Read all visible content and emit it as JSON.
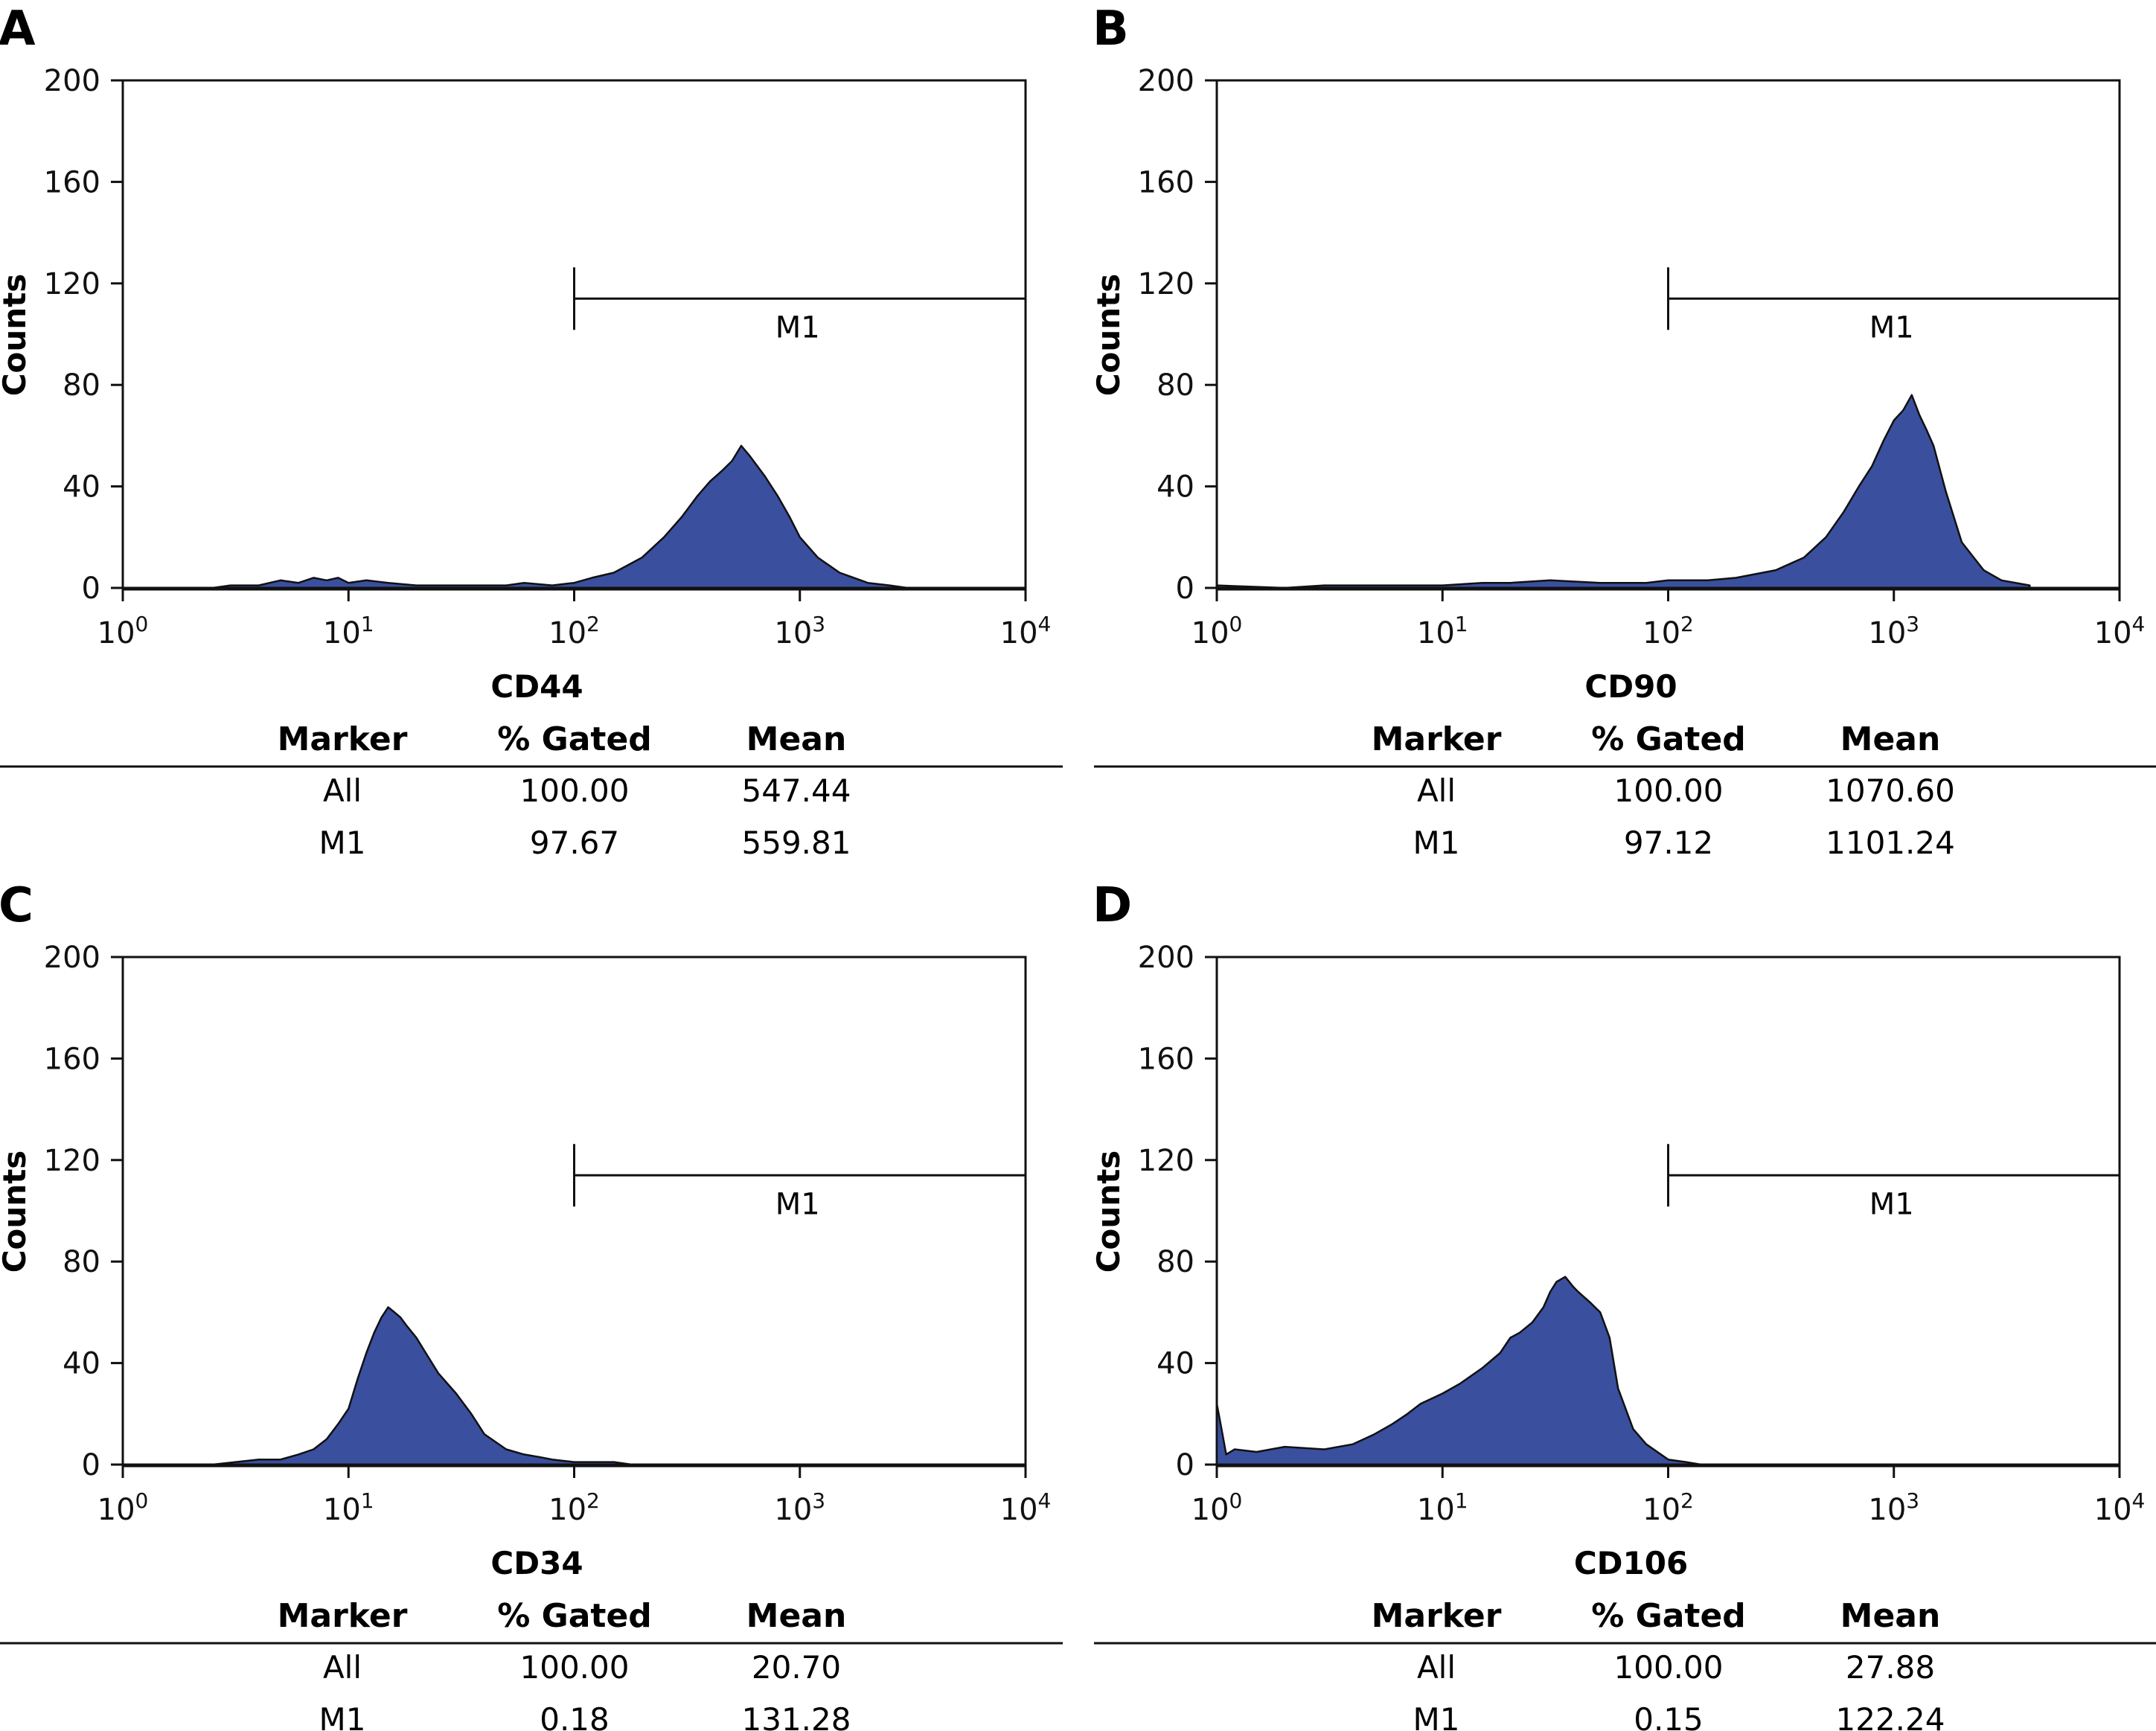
{
  "figure": {
    "panels": [
      {
        "letter": "A",
        "marker_gate": {
          "label": "M1",
          "from": 100,
          "to": 10000,
          "y": 114
        },
        "table": {
          "headers": [
            "Marker",
            "% Gated",
            "Mean"
          ],
          "rows": [
            [
              "All",
              "100.00",
              "547.44"
            ],
            [
              "M1",
              "97.67",
              "559.81"
            ]
          ]
        }
      },
      {
        "letter": "B",
        "marker_gate": {
          "label": "M1",
          "from": 100,
          "to": 10000,
          "y": 114
        },
        "table": {
          "headers": [
            "Marker",
            "% Gated",
            "Mean"
          ],
          "rows": [
            [
              "All",
              "100.00",
              "1070.60"
            ],
            [
              "M1",
              "97.12",
              "1101.24"
            ]
          ]
        }
      },
      {
        "letter": "C",
        "marker_gate": {
          "label": "M1",
          "from": 100,
          "to": 10000,
          "y": 114
        },
        "table": {
          "headers": [
            "Marker",
            "% Gated",
            "Mean"
          ],
          "rows": [
            [
              "All",
              "100.00",
              "20.70"
            ],
            [
              "M1",
              "0.18",
              "131.28"
            ]
          ]
        }
      },
      {
        "letter": "D",
        "marker_gate": {
          "label": "M1",
          "from": 100,
          "to": 10000,
          "y": 114
        },
        "table": {
          "headers": [
            "Marker",
            "% Gated",
            "Mean"
          ],
          "rows": [
            [
              "All",
              "100.00",
              "27.88"
            ],
            [
              "M1",
              "0.15",
              "122.24"
            ]
          ]
        }
      }
    ]
  },
  "chart_data": [
    {
      "type": "area",
      "xlabel": "CD44",
      "ylabel": "Counts",
      "xscale": "log",
      "xlim": [
        1,
        10000
      ],
      "ylim": [
        0,
        200
      ],
      "yticks": [
        0,
        40,
        80,
        120,
        160,
        200
      ],
      "xticks": [
        {
          "base": "10",
          "exp": "0"
        },
        {
          "base": "10",
          "exp": "1"
        },
        {
          "base": "10",
          "exp": "2"
        },
        {
          "base": "10",
          "exp": "3"
        },
        {
          "base": "10",
          "exp": "4"
        }
      ],
      "grid": false,
      "fill_color": "#3a4f9e",
      "line_color": "#111111",
      "series": [
        {
          "x": [
            1,
            2.5,
            3,
            4,
            5,
            6,
            7,
            8,
            9,
            10,
            12,
            15,
            20,
            30,
            40,
            50,
            60,
            80,
            100,
            120,
            150,
            200,
            250,
            300,
            350,
            400,
            450,
            500,
            550,
            600,
            700,
            800,
            900,
            1000,
            1200,
            1500,
            2000,
            2500,
            3000
          ],
          "y": [
            0,
            0,
            1,
            1,
            3,
            2,
            4,
            3,
            4,
            2,
            3,
            2,
            1,
            1,
            1,
            1,
            2,
            1,
            2,
            4,
            6,
            12,
            20,
            28,
            36,
            42,
            46,
            50,
            56,
            52,
            44,
            36,
            28,
            20,
            12,
            6,
            2,
            1,
            0
          ]
        }
      ]
    },
    {
      "type": "area",
      "xlabel": "CD90",
      "ylabel": "Counts",
      "xscale": "log",
      "xlim": [
        1,
        10000
      ],
      "ylim": [
        0,
        200
      ],
      "yticks": [
        0,
        40,
        80,
        120,
        160,
        200
      ],
      "xticks": [
        {
          "base": "10",
          "exp": "0"
        },
        {
          "base": "10",
          "exp": "1"
        },
        {
          "base": "10",
          "exp": "2"
        },
        {
          "base": "10",
          "exp": "3"
        },
        {
          "base": "10",
          "exp": "4"
        }
      ],
      "grid": false,
      "fill_color": "#3a4f9e",
      "line_color": "#111111",
      "series": [
        {
          "x": [
            1,
            2,
            3,
            5,
            8,
            10,
            15,
            20,
            30,
            50,
            80,
            100,
            150,
            200,
            300,
            400,
            500,
            600,
            700,
            800,
            900,
            1000,
            1100,
            1200,
            1300,
            1400,
            1500,
            1700,
            2000,
            2500,
            3000,
            4000
          ],
          "y": [
            1,
            0,
            1,
            1,
            1,
            1,
            2,
            2,
            3,
            2,
            2,
            3,
            3,
            4,
            7,
            12,
            20,
            30,
            40,
            48,
            58,
            66,
            70,
            76,
            68,
            62,
            56,
            38,
            18,
            7,
            3,
            1
          ]
        }
      ]
    },
    {
      "type": "area",
      "xlabel": "CD34",
      "ylabel": "Counts",
      "xscale": "log",
      "xlim": [
        1,
        10000
      ],
      "ylim": [
        0,
        200
      ],
      "yticks": [
        0,
        40,
        80,
        120,
        160,
        200
      ],
      "xticks": [
        {
          "base": "10",
          "exp": "0"
        },
        {
          "base": "10",
          "exp": "1"
        },
        {
          "base": "10",
          "exp": "2"
        },
        {
          "base": "10",
          "exp": "3"
        },
        {
          "base": "10",
          "exp": "4"
        }
      ],
      "grid": false,
      "fill_color": "#3a4f9e",
      "line_color": "#111111",
      "series": [
        {
          "x": [
            2.5,
            4,
            5,
            6,
            7,
            8,
            9,
            10,
            11,
            12,
            13,
            14,
            15,
            16,
            17,
            18,
            20,
            22,
            25,
            30,
            35,
            40,
            50,
            60,
            70,
            80,
            100,
            120,
            150,
            180
          ],
          "y": [
            0,
            2,
            2,
            4,
            6,
            10,
            16,
            22,
            34,
            44,
            52,
            58,
            62,
            60,
            58,
            55,
            50,
            44,
            36,
            28,
            20,
            12,
            6,
            4,
            3,
            2,
            1,
            1,
            1,
            0
          ]
        }
      ]
    },
    {
      "type": "area",
      "xlabel": "CD106",
      "ylabel": "Counts",
      "xscale": "log",
      "xlim": [
        1,
        10000
      ],
      "ylim": [
        0,
        200
      ],
      "yticks": [
        0,
        40,
        80,
        120,
        160,
        200
      ],
      "xticks": [
        {
          "base": "10",
          "exp": "0"
        },
        {
          "base": "10",
          "exp": "1"
        },
        {
          "base": "10",
          "exp": "2"
        },
        {
          "base": "10",
          "exp": "3"
        },
        {
          "base": "10",
          "exp": "4"
        }
      ],
      "grid": false,
      "fill_color": "#3a4f9e",
      "line_color": "#111111",
      "series": [
        {
          "x": [
            1,
            1.05,
            1.1,
            1.2,
            1.5,
            2,
            3,
            4,
            5,
            6,
            7,
            8,
            10,
            12,
            15,
            18,
            20,
            22,
            25,
            28,
            30,
            32,
            35,
            38,
            40,
            45,
            50,
            55,
            60,
            70,
            80,
            100,
            120,
            140
          ],
          "y": [
            24,
            14,
            4,
            6,
            5,
            7,
            6,
            8,
            12,
            16,
            20,
            24,
            28,
            32,
            38,
            44,
            50,
            52,
            56,
            62,
            68,
            72,
            74,
            70,
            68,
            64,
            60,
            50,
            30,
            14,
            8,
            2,
            1,
            0
          ]
        }
      ]
    }
  ]
}
